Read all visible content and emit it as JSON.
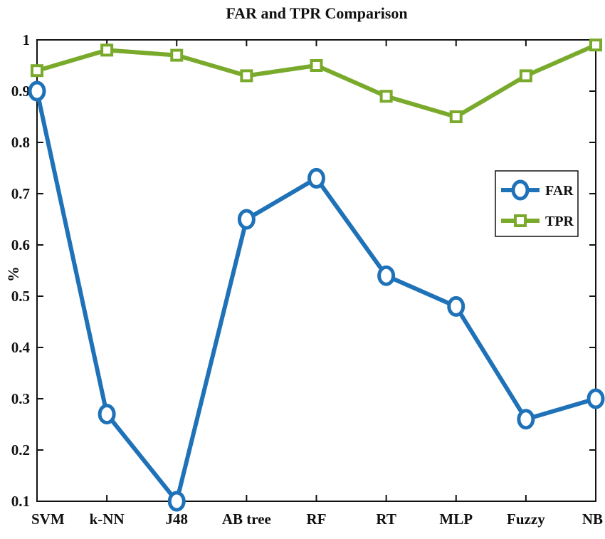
{
  "chart_data": {
    "type": "line",
    "title": "FAR and TPR Comparison",
    "xlabel": "",
    "ylabel": "%",
    "categories": [
      "SVM",
      "k-NN",
      "J48",
      "AB tree",
      "RF",
      "RT",
      "MLP",
      "Fuzzy",
      "NB"
    ],
    "ylim": [
      0.1,
      1
    ],
    "yticks": [
      "0.1",
      "0.2",
      "0.3",
      "0.4",
      "0.5",
      "0.6",
      "0.7",
      "0.8",
      "0.9",
      "1"
    ],
    "grid": false,
    "legend_position": "right",
    "series": [
      {
        "name": "FAR",
        "color": "#1f72b8",
        "marker": "circle",
        "values": [
          0.9,
          0.27,
          0.1,
          0.65,
          0.73,
          0.54,
          0.48,
          0.26,
          0.3
        ]
      },
      {
        "name": "TPR",
        "color": "#7aaa2c",
        "marker": "square",
        "values": [
          0.94,
          0.98,
          0.97,
          0.93,
          0.95,
          0.89,
          0.85,
          0.93,
          0.99
        ]
      }
    ]
  }
}
